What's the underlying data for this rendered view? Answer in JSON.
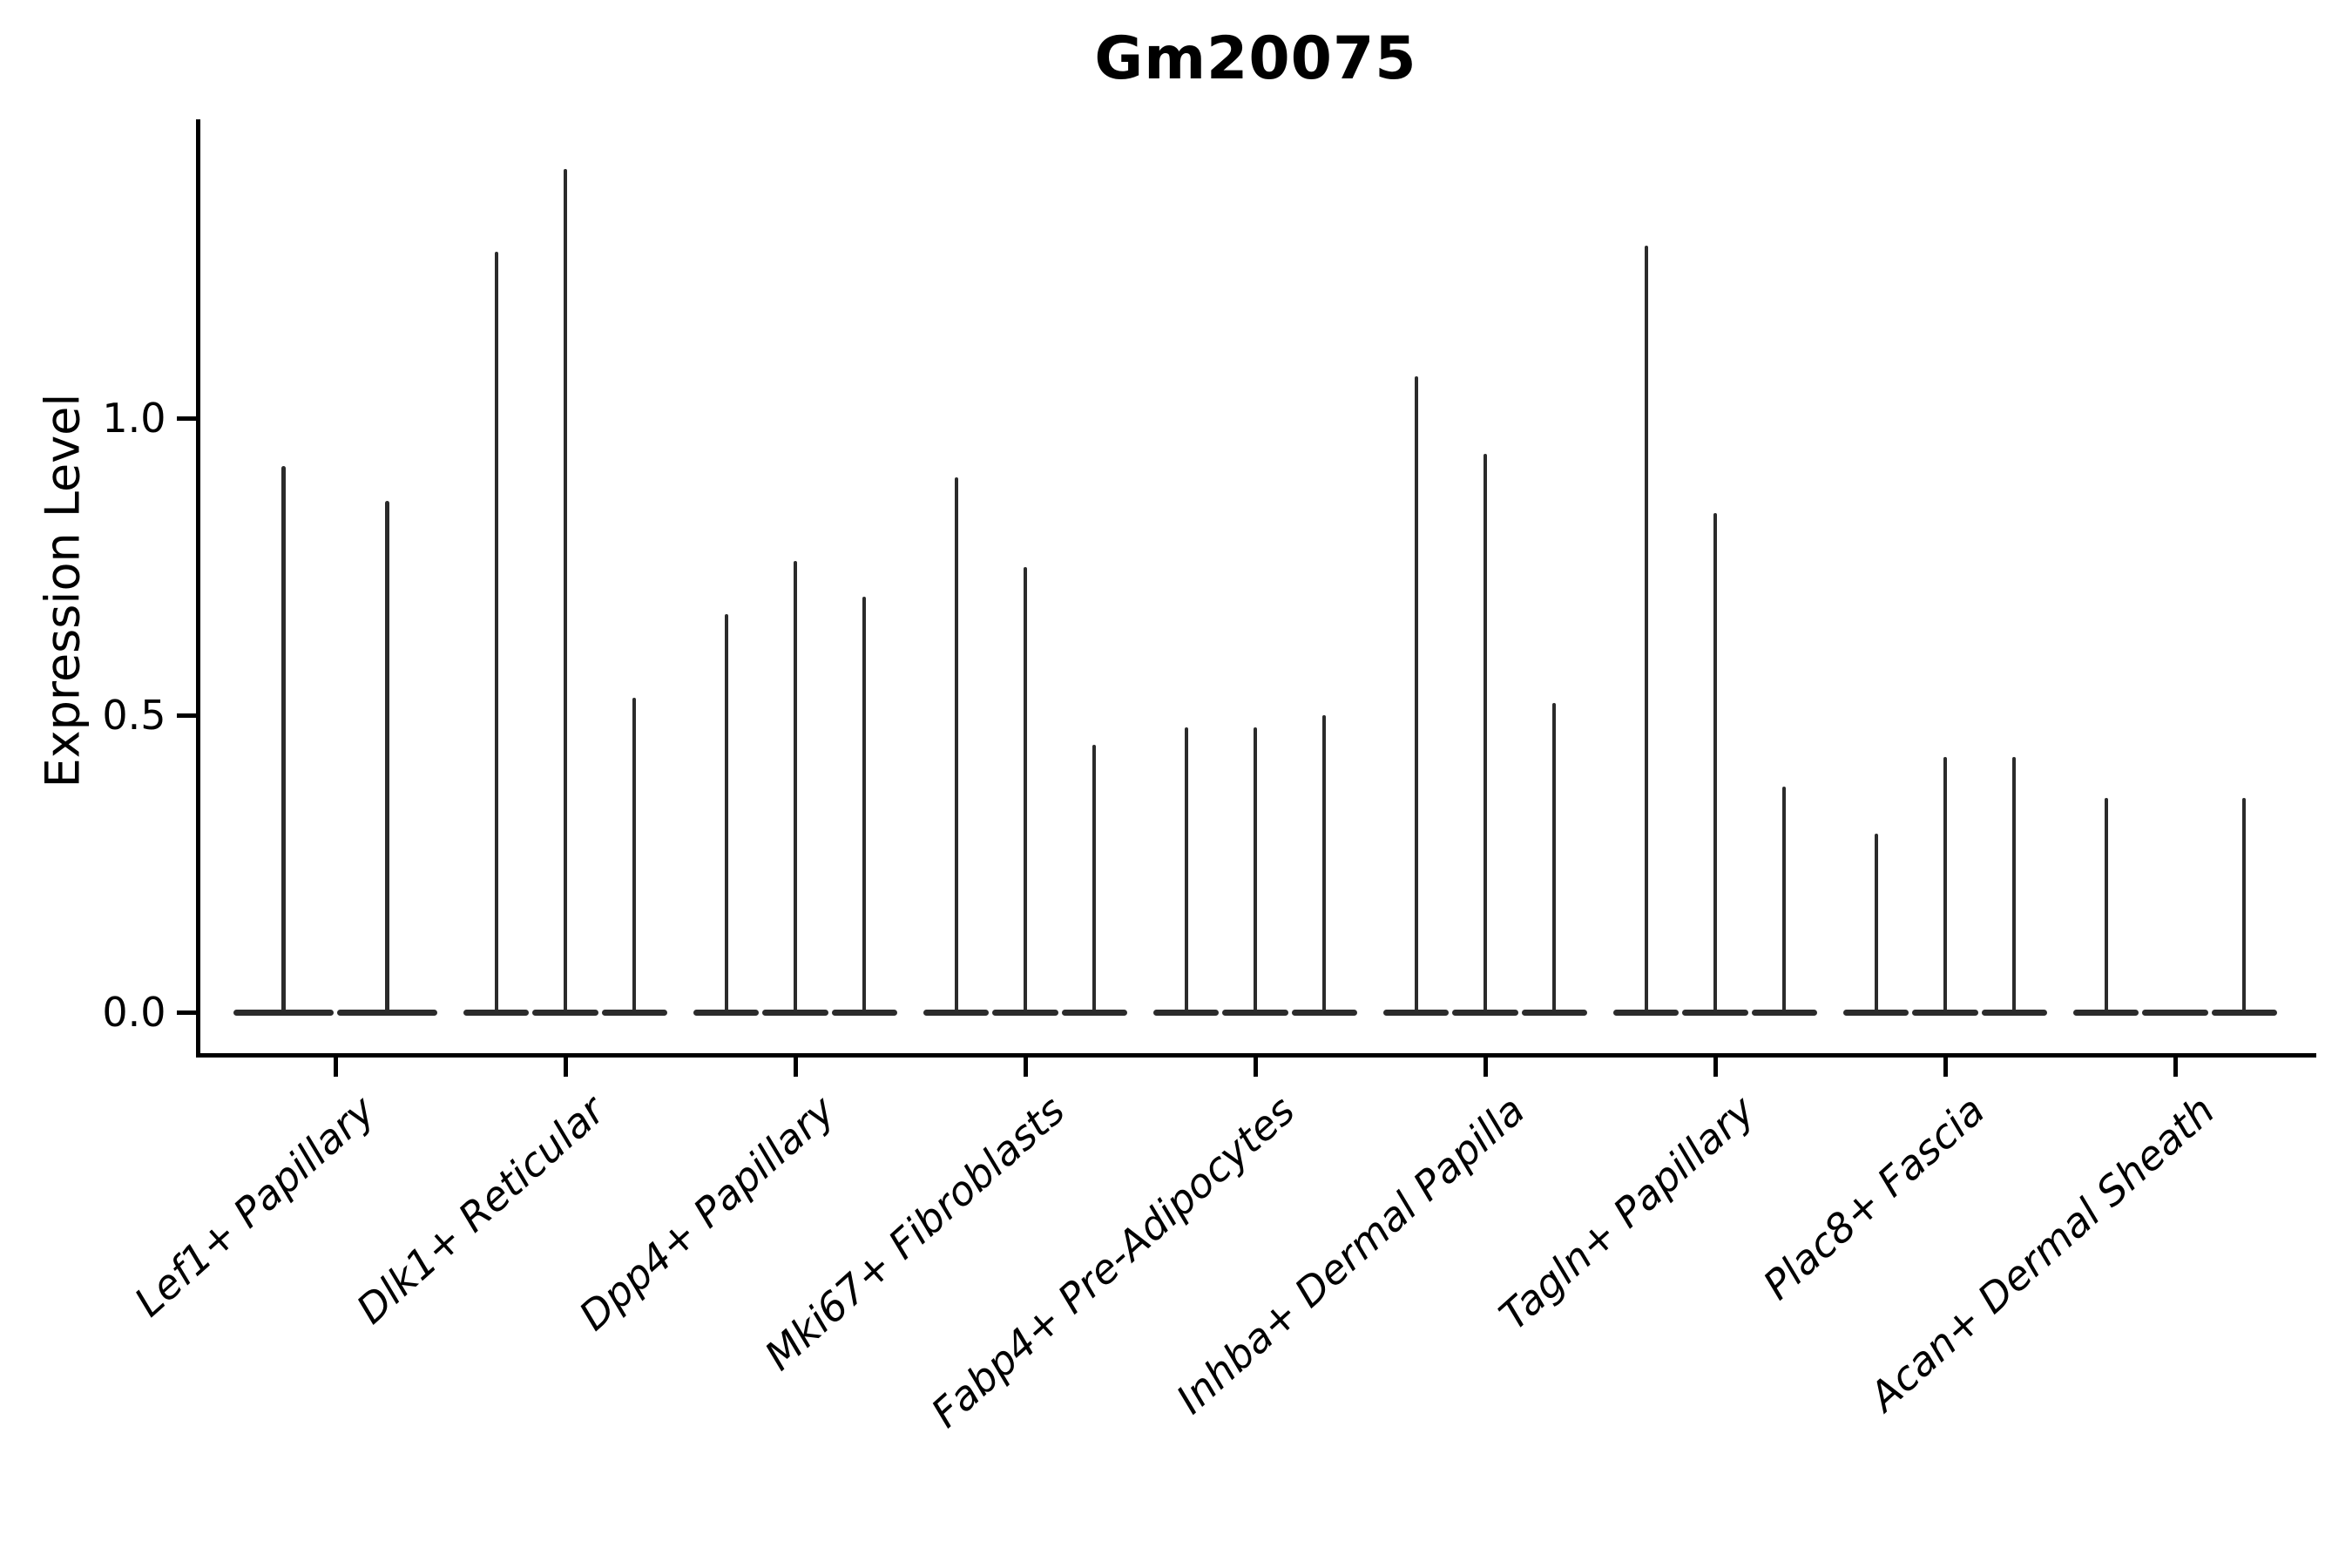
{
  "title": "Gm20075",
  "y_axis": {
    "label": "Expression Level",
    "tick_labels": [
      "0.0",
      "0.5",
      "1.0"
    ]
  },
  "chart_data": {
    "type": "violin",
    "title": "Gm20075",
    "xlabel": "",
    "ylabel": "Expression Level",
    "ylim": [
      -0.07,
      1.5
    ],
    "ytick_values": [
      0.0,
      0.5,
      1.0
    ],
    "ytick_labels": [
      "0.0",
      "0.5",
      "1.0"
    ],
    "grid": false,
    "legend": false,
    "line_color": "#2b2b2b",
    "background_color": "#ffffff",
    "violin_style": "thin spikes from 0 up to max value with flat collapsed body at baseline",
    "x_tick_rotation_deg": 42,
    "categories": [
      "Lef1+ Papillary",
      "Dlk1+ Reticular",
      "Dpp4+ Papillary",
      "Mki67+ Fibroblasts",
      "Fabp4+ Pre-Adipocytes",
      "Inhba+ Dermal Papilla",
      "Tagln+ Papillary",
      "Plac8+ Fascia",
      "Acan+ Dermal Sheath"
    ],
    "groups": [
      {
        "label": "Lef1+ Papillary",
        "violin_max": [
          0.92,
          0.86
        ]
      },
      {
        "label": "Dlk1+ Reticular",
        "violin_max": [
          1.28,
          1.42,
          0.53
        ]
      },
      {
        "label": "Dpp4+ Papillary",
        "violin_max": [
          0.67,
          0.76,
          0.7
        ]
      },
      {
        "label": "Mki67+ Fibroblasts",
        "violin_max": [
          0.9,
          0.75,
          0.45
        ]
      },
      {
        "label": "Fabp4+ Pre-Adipocytes",
        "violin_max": [
          0.48,
          0.48,
          0.5
        ]
      },
      {
        "label": "Inhba+ Dermal Papilla",
        "violin_max": [
          1.07,
          0.94,
          0.52
        ]
      },
      {
        "label": "Tagln+ Papillary",
        "violin_max": [
          1.29,
          0.84,
          0.38
        ]
      },
      {
        "label": "Plac8+ Fascia",
        "violin_max": [
          0.3,
          0.43,
          0.43
        ]
      },
      {
        "label": "Acan+ Dermal Sheath",
        "violin_max": [
          0.36,
          0.0,
          0.36
        ]
      }
    ]
  }
}
